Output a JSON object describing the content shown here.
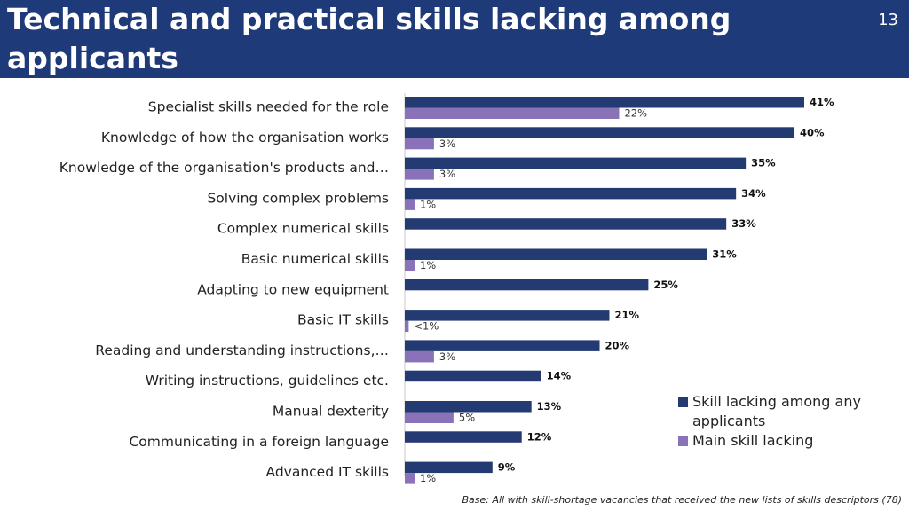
{
  "header": {
    "title": "Technical and practical skills lacking among applicants",
    "page_number": "13"
  },
  "colors": {
    "header_bg": "#1f3a78",
    "series_any": "#233a72",
    "series_main": "#8a72b8"
  },
  "chart_data": {
    "type": "bar",
    "orientation": "horizontal",
    "categories": [
      "Specialist skills needed for the role",
      "Knowledge of how the organisation works",
      "Knowledge of the organisation's products and…",
      "Solving complex problems",
      "Complex numerical skills",
      "Basic numerical skills",
      "Adapting to new equipment",
      "Basic IT skills",
      "Reading and understanding instructions,…",
      "Writing instructions, guidelines etc.",
      "Manual dexterity",
      "Communicating in a foreign language",
      "Advanced IT skills"
    ],
    "series": [
      {
        "name": "Skill lacking among any applicants",
        "values": [
          41,
          40,
          35,
          34,
          33,
          31,
          25,
          21,
          20,
          14,
          13,
          12,
          9
        ],
        "labels": [
          "41%",
          "40%",
          "35%",
          "34%",
          "33%",
          "31%",
          "25%",
          "21%",
          "20%",
          "14%",
          "13%",
          "12%",
          "9%"
        ]
      },
      {
        "name": "Main skill lacking",
        "values": [
          22,
          3,
          3,
          1,
          null,
          1,
          null,
          0.4,
          3,
          null,
          5,
          null,
          1
        ],
        "labels": [
          "22%",
          "3%",
          "3%",
          "1%",
          "",
          "1%",
          "",
          "<1%",
          "3%",
          "",
          "5%",
          "",
          "1%"
        ]
      }
    ],
    "xlim": [
      0,
      45
    ],
    "grid": false,
    "legend_position": "bottom-right"
  },
  "footnote": "Base: All with skill-shortage vacancies that received the new lists of skills descriptors (78)"
}
